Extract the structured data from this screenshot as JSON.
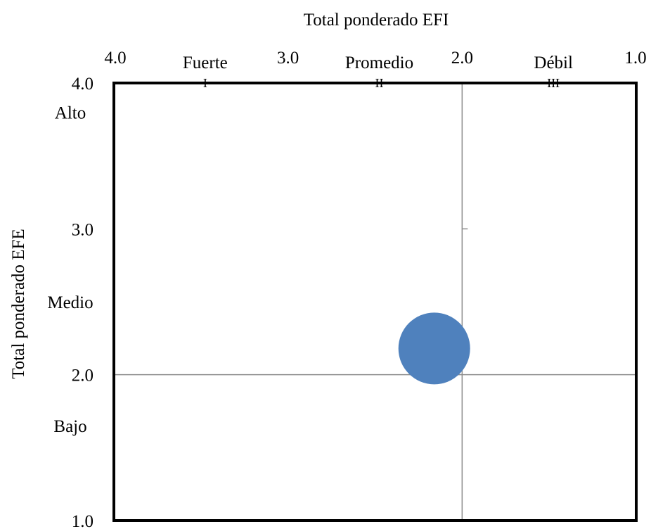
{
  "chart_data": {
    "type": "scatter",
    "title": "",
    "xlabel": "Total ponderado EFI",
    "ylabel": "Total ponderado EFE",
    "xlim": [
      4.0,
      1.0
    ],
    "ylim": [
      1.0,
      4.0
    ],
    "x_reversed": true,
    "x_ticks": [
      {
        "value": 4.0,
        "label": "4.0"
      },
      {
        "value": 3.0,
        "label": "3.0"
      },
      {
        "value": 2.0,
        "label": "2.0"
      },
      {
        "value": 1.0,
        "label": "1.0"
      }
    ],
    "y_ticks": [
      {
        "value": 4.0,
        "label": "4.0"
      },
      {
        "value": 3.0,
        "label": "3.0"
      },
      {
        "value": 2.0,
        "label": "2.0"
      },
      {
        "value": 1.0,
        "label": "1.0"
      }
    ],
    "x_categories": [
      {
        "label": "Fuerte",
        "numeral": "I",
        "center": 3.5
      },
      {
        "label": "Promedio",
        "numeral": "II",
        "center": 2.5
      },
      {
        "label": "Débil",
        "numeral": "III",
        "center": 1.5
      }
    ],
    "y_categories": [
      {
        "label": "Alto",
        "center": 3.8
      },
      {
        "label": "Medio",
        "center": 2.5
      },
      {
        "label": "Bajo",
        "center": 1.65
      }
    ],
    "reference_lines": {
      "x": 2.0,
      "y": 2.0
    },
    "points": [
      {
        "x": 2.16,
        "y": 2.18
      }
    ],
    "grid": false,
    "legend": "none",
    "colors": {
      "point": "#4f81bd",
      "frame": "#000000",
      "reference": "#8c8c8c"
    }
  }
}
